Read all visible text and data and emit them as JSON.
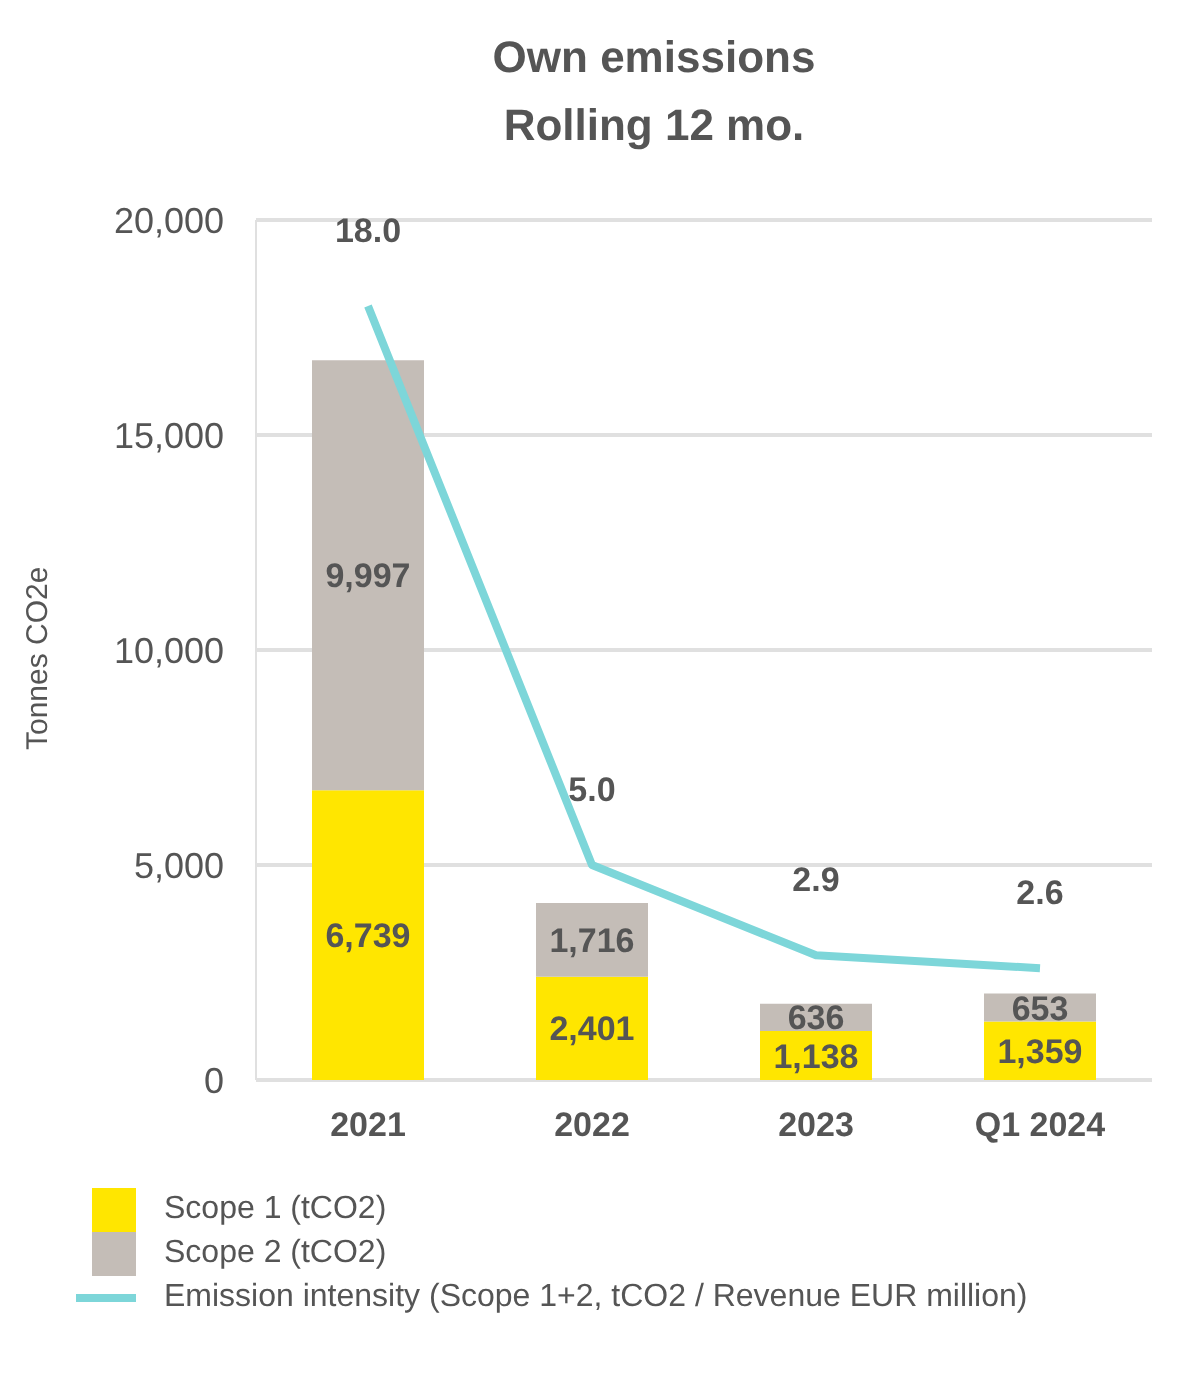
{
  "chart_data": {
    "type": "bar",
    "title": "Own emissions",
    "subtitle": "Rolling 12 mo.",
    "ylabel": "Tonnes CO2e",
    "categories": [
      "2021",
      "2022",
      "2023",
      "Q1 2024"
    ],
    "stacked": true,
    "grid": "y",
    "legend": "bottom left",
    "ylim": [
      0,
      20000
    ],
    "yticks": [
      0,
      {
        "value": 5000,
        "label": "5,000"
      },
      {
        "value": 10000,
        "label": "10,000"
      },
      {
        "value": 15000,
        "label": "15,000"
      },
      {
        "value": 20000,
        "label": "20,000"
      }
    ],
    "y2lim": [
      0,
      20
    ],
    "series": [
      {
        "name": "Scope 1 (tCO2)",
        "color": "#ffe600",
        "values": [
          6739,
          2401,
          1138,
          1359
        ],
        "value_labels": [
          "6,739",
          "2,401",
          "1,138",
          "1,359"
        ]
      },
      {
        "name": "Scope 2 (tCO2)",
        "color": "#c4bdb7",
        "values": [
          9997,
          1716,
          636,
          653
        ],
        "value_labels": [
          "9,997",
          "1,716",
          "636",
          "653"
        ]
      },
      {
        "name": "Emission intensity (Scope 1+2, tCO2 / Revenue EUR million)",
        "type": "line",
        "axis": "y2",
        "color": "#7dd6d9",
        "values": [
          18.0,
          5.0,
          2.9,
          2.6
        ],
        "value_labels": [
          "18.0",
          "5.0",
          "2.9",
          "2.6"
        ]
      }
    ]
  }
}
